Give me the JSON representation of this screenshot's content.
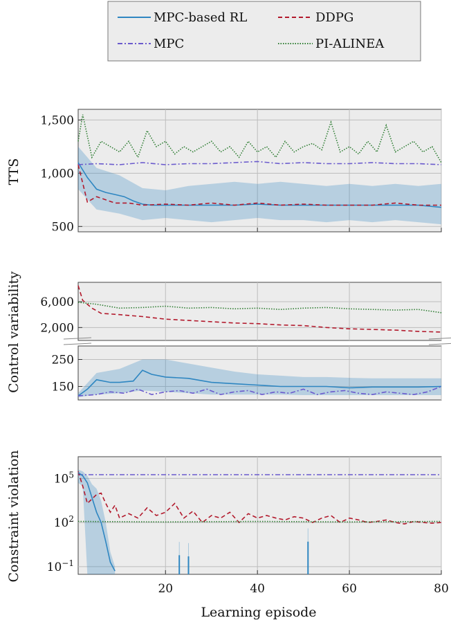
{
  "legend": {
    "entries": [
      {
        "name": "MPC-based RL",
        "color": "#2e86c1",
        "dash": "solid"
      },
      {
        "name": "DDPG",
        "color": "#b2182b",
        "dash": "dashed"
      },
      {
        "name": "MPC",
        "color": "#6a5acd",
        "dash": "dashdot"
      },
      {
        "name": "PI-ALINEA",
        "color": "#2e7d32",
        "dash": "dotted"
      }
    ]
  },
  "chart_data": [
    {
      "type": "line",
      "ylabel": "TTS",
      "ylim": [
        450,
        1600
      ],
      "yticks": [
        500,
        1000,
        1500
      ],
      "ytick_labels": [
        "500",
        "1,000",
        "1,500"
      ],
      "xlim": [
        1,
        80
      ],
      "series": [
        {
          "name": "MPC-based RL",
          "x": [
            1,
            3,
            5,
            7,
            9,
            11,
            13,
            15,
            17,
            20,
            25,
            30,
            35,
            40,
            45,
            50,
            55,
            60,
            65,
            70,
            75,
            80
          ],
          "y": [
            1100,
            960,
            850,
            820,
            800,
            780,
            740,
            710,
            700,
            700,
            700,
            700,
            700,
            710,
            700,
            700,
            700,
            700,
            700,
            700,
            700,
            680
          ]
        },
        {
          "name": "DDPG",
          "x": [
            1,
            3,
            5,
            7,
            9,
            12,
            15,
            20,
            25,
            30,
            35,
            40,
            45,
            50,
            55,
            60,
            65,
            70,
            75,
            80
          ],
          "y": [
            1080,
            730,
            780,
            750,
            720,
            720,
            700,
            710,
            700,
            720,
            700,
            720,
            700,
            710,
            700,
            700,
            700,
            720,
            700,
            700
          ]
        },
        {
          "name": "MPC",
          "x": [
            1,
            5,
            10,
            15,
            20,
            25,
            30,
            35,
            40,
            45,
            50,
            55,
            60,
            65,
            70,
            75,
            80
          ],
          "y": [
            1080,
            1090,
            1080,
            1100,
            1080,
            1090,
            1090,
            1100,
            1110,
            1090,
            1100,
            1090,
            1090,
            1100,
            1090,
            1090,
            1080
          ]
        },
        {
          "name": "PI-ALINEA",
          "x": [
            1,
            2,
            4,
            6,
            8,
            10,
            12,
            14,
            16,
            18,
            20,
            22,
            24,
            26,
            28,
            30,
            32,
            34,
            36,
            38,
            40,
            42,
            44,
            46,
            48,
            50,
            52,
            54,
            56,
            58,
            60,
            62,
            64,
            66,
            68,
            70,
            72,
            74,
            76,
            78,
            80
          ],
          "y": [
            1300,
            1550,
            1150,
            1300,
            1250,
            1200,
            1300,
            1150,
            1400,
            1250,
            1300,
            1180,
            1250,
            1200,
            1250,
            1300,
            1200,
            1250,
            1150,
            1300,
            1200,
            1250,
            1150,
            1300,
            1200,
            1250,
            1280,
            1220,
            1480,
            1200,
            1250,
            1180,
            1300,
            1200,
            1450,
            1200,
            1250,
            1300,
            1200,
            1250,
            1100
          ]
        }
      ],
      "band": {
        "x": [
          1,
          5,
          10,
          15,
          20,
          25,
          30,
          35,
          40,
          45,
          50,
          55,
          60,
          65,
          70,
          75,
          80
        ],
        "lower": [
          850,
          660,
          620,
          560,
          580,
          560,
          540,
          560,
          580,
          560,
          560,
          540,
          560,
          540,
          560,
          540,
          520
        ],
        "upper": [
          1250,
          1050,
          980,
          860,
          840,
          880,
          900,
          920,
          900,
          920,
          900,
          880,
          900,
          880,
          900,
          880,
          900
        ]
      }
    },
    {
      "type": "line",
      "ylabel": "Control variability",
      "ytick_labels": [
        "150",
        "250",
        "2,000",
        "6,000"
      ],
      "xlim": [
        1,
        80
      ],
      "broken_axis": true,
      "upper_ylim": [
        0,
        9000
      ],
      "lower_ylim": [
        100,
        300
      ],
      "series": [
        {
          "name": "DDPG",
          "panel": "upper",
          "x": [
            1,
            2,
            4,
            6,
            10,
            15,
            20,
            25,
            30,
            35,
            40,
            45,
            50,
            55,
            60,
            65,
            70,
            75,
            80
          ],
          "y": [
            8500,
            6200,
            5000,
            4200,
            4000,
            3700,
            3300,
            3100,
            2900,
            2700,
            2600,
            2400,
            2300,
            2000,
            1800,
            1700,
            1600,
            1400,
            1300
          ]
        },
        {
          "name": "PI-ALINEA",
          "panel": "upper",
          "x": [
            1,
            5,
            10,
            15,
            20,
            25,
            30,
            35,
            40,
            45,
            50,
            55,
            60,
            65,
            70,
            75,
            80
          ],
          "y": [
            5900,
            5600,
            5000,
            5100,
            5300,
            5000,
            5100,
            4900,
            5000,
            4800,
            5000,
            5100,
            4900,
            4800,
            4700,
            4800,
            4300
          ]
        },
        {
          "name": "MPC-based RL",
          "panel": "lower",
          "x": [
            1,
            3,
            5,
            8,
            10,
            13,
            15,
            17,
            20,
            25,
            30,
            35,
            40,
            45,
            50,
            55,
            60,
            65,
            70,
            75,
            80
          ],
          "y": [
            115,
            140,
            175,
            165,
            165,
            170,
            210,
            195,
            185,
            180,
            165,
            160,
            155,
            150,
            150,
            150,
            145,
            148,
            148,
            148,
            150
          ]
        },
        {
          "name": "MPC",
          "panel": "lower",
          "x": [
            1,
            5,
            8,
            11,
            14,
            17,
            20,
            23,
            26,
            29,
            32,
            35,
            38,
            41,
            44,
            47,
            50,
            53,
            56,
            59,
            62,
            65,
            68,
            71,
            74,
            77,
            80
          ],
          "y": [
            115,
            120,
            130,
            125,
            140,
            120,
            130,
            135,
            125,
            140,
            120,
            130,
            135,
            120,
            130,
            125,
            140,
            120,
            130,
            135,
            125,
            120,
            130,
            125,
            120,
            130,
            150
          ]
        }
      ],
      "band": {
        "x": [
          1,
          5,
          10,
          15,
          20,
          25,
          30,
          35,
          40,
          45,
          50,
          55,
          60,
          65,
          70,
          75,
          80
        ],
        "lower": [
          110,
          120,
          125,
          135,
          130,
          125,
          120,
          120,
          120,
          120,
          118,
          118,
          118,
          118,
          118,
          118,
          118
        ],
        "upper": [
          125,
          200,
          215,
          250,
          250,
          235,
          220,
          205,
          195,
          190,
          185,
          185,
          182,
          180,
          180,
          180,
          180
        ]
      }
    },
    {
      "type": "line",
      "ylabel": "Constraint violation",
      "yscale": "log",
      "ylim": [
        0.03,
        3000000
      ],
      "ytick_labels": [
        "10^{-1}",
        "10^{2}",
        "10^{5}"
      ],
      "xlim": [
        1,
        80
      ],
      "xlabel": "Learning episode",
      "xticks": [
        20,
        40,
        60,
        80
      ],
      "series": [
        {
          "name": "MPC",
          "x": [
            1,
            80
          ],
          "y": [
            180000,
            180000
          ]
        },
        {
          "name": "DDPG",
          "x": [
            1,
            2,
            3,
            4,
            5,
            6,
            7,
            8,
            9,
            10,
            12,
            14,
            16,
            18,
            20,
            22,
            24,
            26,
            28,
            30,
            32,
            34,
            36,
            38,
            40,
            42,
            44,
            46,
            48,
            50,
            52,
            54,
            56,
            58,
            60,
            62,
            64,
            66,
            68,
            70,
            72,
            74,
            76,
            78,
            80
          ],
          "y": [
            300000,
            30000,
            2000,
            4000,
            8000,
            10000,
            2000,
            500,
            1500,
            200,
            400,
            200,
            1000,
            300,
            500,
            2000,
            200,
            600,
            100,
            300,
            200,
            500,
            100,
            400,
            200,
            300,
            200,
            150,
            250,
            200,
            100,
            200,
            300,
            100,
            200,
            150,
            100,
            120,
            150,
            100,
            80,
            120,
            100,
            90,
            100
          ]
        },
        {
          "name": "PI-ALINEA",
          "x": [
            1,
            20,
            40,
            60,
            80
          ],
          "y": [
            120,
            110,
            120,
            110,
            120
          ]
        },
        {
          "name": "MPC-based RL",
          "x": [
            1,
            2,
            3,
            4,
            5,
            6,
            7,
            8,
            9
          ],
          "y": [
            250000,
            150000,
            50000,
            5000,
            500,
            100,
            5,
            0.2,
            0.05
          ]
        }
      ],
      "band": {
        "x": [
          1,
          2,
          3,
          4,
          5,
          6,
          7,
          8,
          9
        ],
        "lower": [
          50000,
          30000,
          0.03,
          0.03,
          0.03,
          0.03,
          0.03,
          0.03,
          0.03
        ],
        "upper": [
          400000,
          300000,
          150000,
          40000,
          20000,
          3000,
          100,
          1,
          0.1
        ]
      },
      "spikes": [
        {
          "x": 23,
          "y": 0.6
        },
        {
          "x": 25,
          "y": 0.5
        },
        {
          "x": 51,
          "y": 5
        }
      ]
    }
  ]
}
